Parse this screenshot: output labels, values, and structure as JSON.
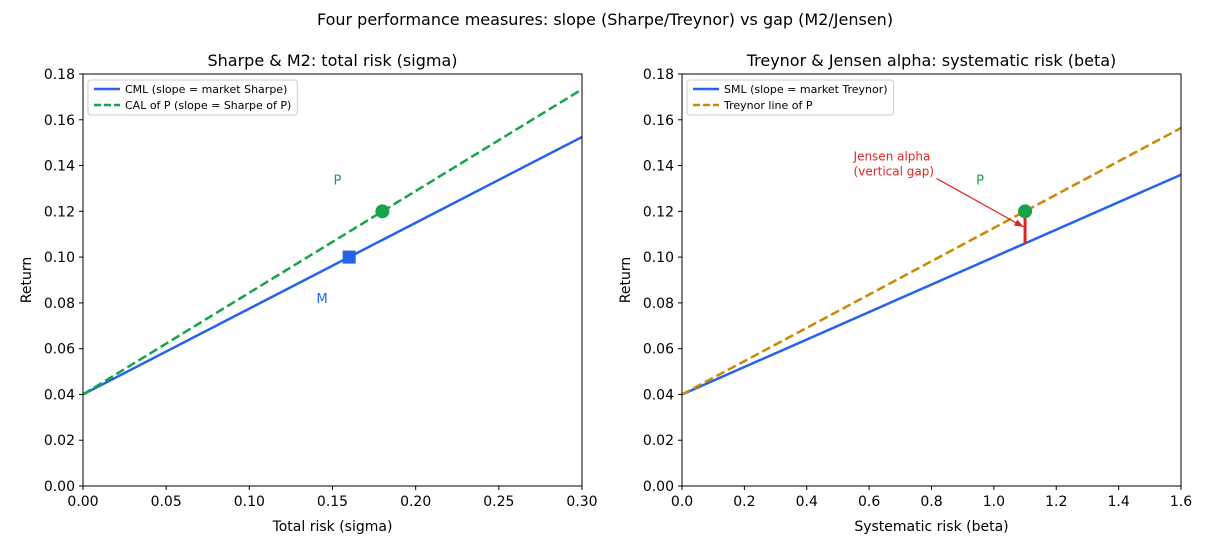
{
  "suptitle": "Four performance measures: slope (Sharpe/Treynor) vs gap (M2/Jensen)",
  "colors": {
    "blue": "#2563eb",
    "green": "#16a34a",
    "gold": "#ca8a04",
    "red": "#dc2626"
  },
  "chart_data": [
    {
      "type": "line",
      "title": "Sharpe & M2: total risk (sigma)",
      "xlabel": "Total risk (sigma)",
      "ylabel": "Return",
      "xlim": [
        0,
        0.3
      ],
      "ylim": [
        0,
        0.18
      ],
      "xticks": [
        "0.00",
        "0.05",
        "0.10",
        "0.15",
        "0.20",
        "0.25",
        "0.30"
      ],
      "yticks": [
        "0.00",
        "0.02",
        "0.04",
        "0.06",
        "0.08",
        "0.10",
        "0.12",
        "0.14",
        "0.16",
        "0.18"
      ],
      "grid": false,
      "legend_position": "upper-left",
      "series": [
        {
          "name": "CML (slope = market Sharpe)",
          "color": "blue",
          "style": "solid",
          "x": [
            0,
            0.3
          ],
          "y": [
            0.04,
            0.1525
          ]
        },
        {
          "name": "CAL of P (slope = Sharpe of P)",
          "color": "green",
          "style": "dashed",
          "x": [
            0,
            0.3
          ],
          "y": [
            0.04,
            0.1733
          ]
        }
      ],
      "points": [
        {
          "label": "M",
          "x": 0.16,
          "y": 0.1,
          "marker": "square",
          "color": "blue",
          "label_position": "below-left"
        },
        {
          "label": "P",
          "x": 0.18,
          "y": 0.12,
          "marker": "circle",
          "color": "green",
          "label_position": "above-left"
        }
      ]
    },
    {
      "type": "line",
      "title": "Treynor & Jensen alpha: systematic risk (beta)",
      "xlabel": "Systematic risk (beta)",
      "ylabel": "Return",
      "xlim": [
        0,
        1.6
      ],
      "ylim": [
        0,
        0.18
      ],
      "xticks": [
        "0.0",
        "0.2",
        "0.4",
        "0.6",
        "0.8",
        "1.0",
        "1.2",
        "1.4",
        "1.6"
      ],
      "yticks": [
        "0.00",
        "0.02",
        "0.04",
        "0.06",
        "0.08",
        "0.10",
        "0.12",
        "0.14",
        "0.16",
        "0.18"
      ],
      "grid": false,
      "legend_position": "upper-left",
      "series": [
        {
          "name": "SML (slope = market Treynor)",
          "color": "blue",
          "style": "solid",
          "x": [
            0,
            1.6
          ],
          "y": [
            0.04,
            0.136
          ]
        },
        {
          "name": "Treynor line of P",
          "color": "gold",
          "style": "dashed",
          "x": [
            0,
            1.6
          ],
          "y": [
            0.04,
            0.1564
          ]
        }
      ],
      "points": [
        {
          "label": "P",
          "x": 1.1,
          "y": 0.12,
          "marker": "circle",
          "color": "green",
          "label_position": "above-left"
        }
      ],
      "gap": {
        "x": 1.1,
        "y_from": 0.106,
        "y_to": 0.12,
        "color": "red"
      },
      "annotation": {
        "lines": [
          "Jensen alpha",
          "(vertical gap)"
        ],
        "text_x": 0.55,
        "text_y": 0.137,
        "arrow_to_x": 1.095,
        "arrow_to_y": 0.1132,
        "color": "red"
      }
    }
  ]
}
